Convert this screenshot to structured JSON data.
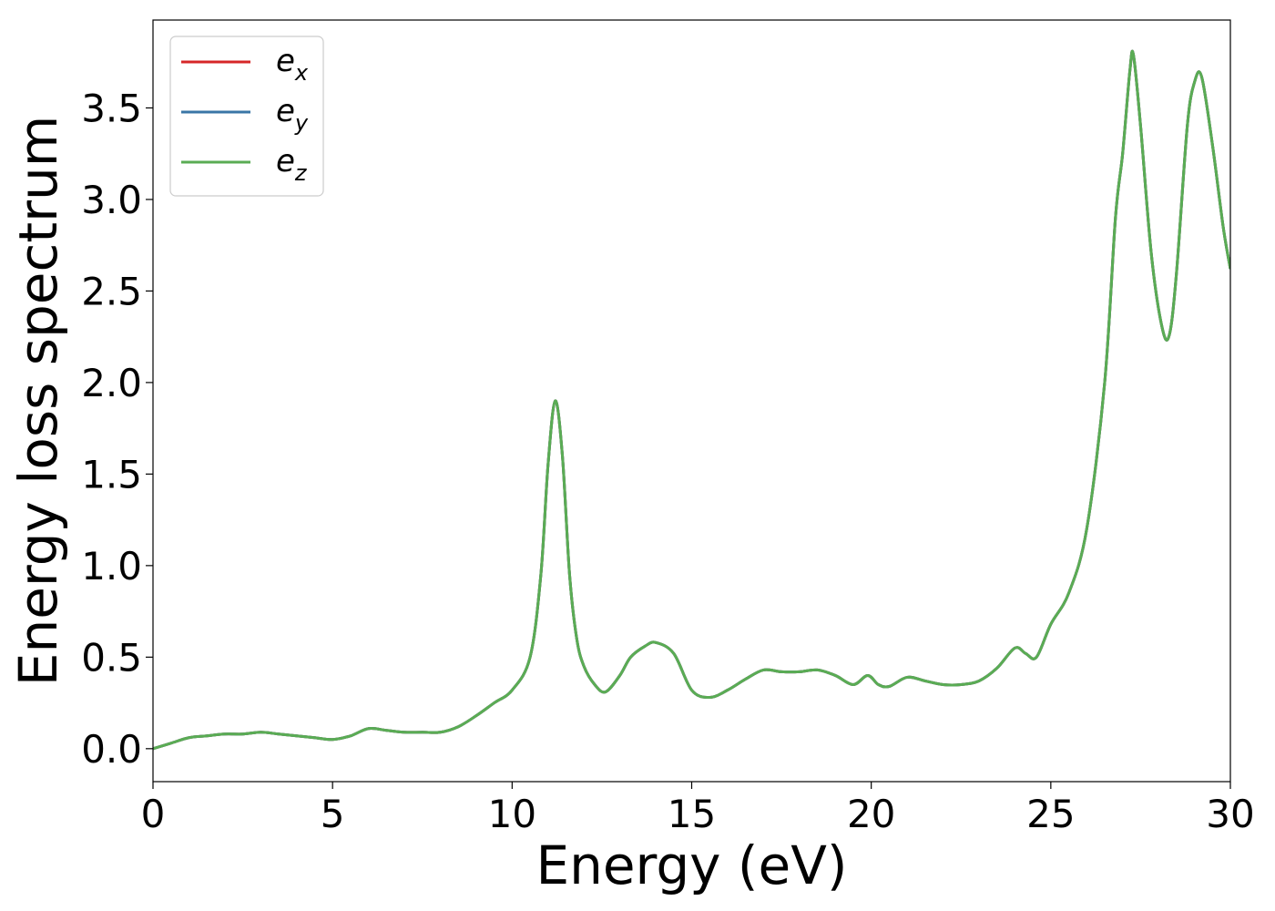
{
  "chart_data": {
    "type": "line",
    "title": "",
    "xlabel": "Energy (eV)",
    "ylabel": "Energy loss spectrum",
    "xlim": [
      0,
      30
    ],
    "ylim": [
      -0.18,
      3.98
    ],
    "xticks": [
      0,
      5,
      10,
      15,
      20,
      25,
      30
    ],
    "xtick_labels": [
      "0",
      "5",
      "10",
      "15",
      "20",
      "25",
      "30"
    ],
    "yticks": [
      0.0,
      0.5,
      1.0,
      1.5,
      2.0,
      2.5,
      3.0,
      3.5
    ],
    "ytick_labels": [
      "0.0",
      "0.5",
      "1.0",
      "1.5",
      "2.0",
      "2.5",
      "3.0",
      "3.5"
    ],
    "grid": false,
    "legend_position": "top-left",
    "x": [
      0,
      0.5,
      1,
      1.5,
      2,
      2.5,
      3,
      3.5,
      4,
      4.5,
      5,
      5.5,
      6,
      6.5,
      7,
      7.5,
      8,
      8.5,
      9,
      9.5,
      10,
      10.5,
      10.8,
      11,
      11.2,
      11.4,
      11.6,
      11.8,
      12,
      12.3,
      12.6,
      13,
      13.3,
      13.7,
      14,
      14.5,
      15,
      15.5,
      16,
      16.5,
      17,
      17.5,
      18,
      18.5,
      19,
      19.5,
      19.9,
      20.2,
      20.5,
      21,
      21.5,
      22,
      22.5,
      23,
      23.5,
      24,
      24.3,
      24.6,
      25,
      25.5,
      26,
      26.5,
      26.8,
      27,
      27.2,
      27.3,
      27.5,
      27.8,
      28.1,
      28.3,
      28.5,
      28.8,
      29.0,
      29.2,
      29.5,
      29.8,
      30
    ],
    "series": [
      {
        "name": "e_x",
        "label_base": "e",
        "label_sub": "x",
        "color": "#d62728",
        "values": [
          0.0,
          0.03,
          0.06,
          0.07,
          0.08,
          0.08,
          0.09,
          0.08,
          0.07,
          0.06,
          0.05,
          0.07,
          0.11,
          0.1,
          0.09,
          0.09,
          0.09,
          0.12,
          0.18,
          0.25,
          0.32,
          0.5,
          0.95,
          1.55,
          1.9,
          1.6,
          0.95,
          0.6,
          0.45,
          0.35,
          0.31,
          0.4,
          0.5,
          0.56,
          0.58,
          0.52,
          0.32,
          0.28,
          0.32,
          0.38,
          0.43,
          0.42,
          0.42,
          0.43,
          0.4,
          0.35,
          0.4,
          0.35,
          0.34,
          0.39,
          0.37,
          0.35,
          0.35,
          0.37,
          0.44,
          0.55,
          0.52,
          0.5,
          0.68,
          0.85,
          1.2,
          2.0,
          2.9,
          3.25,
          3.7,
          3.79,
          3.4,
          2.7,
          2.3,
          2.26,
          2.6,
          3.4,
          3.64,
          3.67,
          3.3,
          2.85,
          2.62
        ]
      },
      {
        "name": "e_y",
        "label_base": "e",
        "label_sub": "y",
        "color": "#3a76a6",
        "values": [
          0.0,
          0.03,
          0.06,
          0.07,
          0.08,
          0.08,
          0.09,
          0.08,
          0.07,
          0.06,
          0.05,
          0.07,
          0.11,
          0.1,
          0.09,
          0.09,
          0.09,
          0.12,
          0.18,
          0.25,
          0.32,
          0.5,
          0.95,
          1.55,
          1.9,
          1.6,
          0.95,
          0.6,
          0.45,
          0.35,
          0.31,
          0.4,
          0.5,
          0.56,
          0.58,
          0.52,
          0.32,
          0.28,
          0.32,
          0.38,
          0.43,
          0.42,
          0.42,
          0.43,
          0.4,
          0.35,
          0.4,
          0.35,
          0.34,
          0.39,
          0.37,
          0.35,
          0.35,
          0.37,
          0.44,
          0.55,
          0.52,
          0.5,
          0.68,
          0.85,
          1.2,
          2.0,
          2.9,
          3.25,
          3.7,
          3.79,
          3.4,
          2.7,
          2.3,
          2.26,
          2.6,
          3.4,
          3.64,
          3.67,
          3.3,
          2.85,
          2.62
        ]
      },
      {
        "name": "e_z",
        "label_base": "e",
        "label_sub": "z",
        "color": "#5aac54",
        "values": [
          0.0,
          0.03,
          0.06,
          0.07,
          0.08,
          0.08,
          0.09,
          0.08,
          0.07,
          0.06,
          0.05,
          0.07,
          0.11,
          0.1,
          0.09,
          0.09,
          0.09,
          0.12,
          0.18,
          0.25,
          0.32,
          0.5,
          0.95,
          1.55,
          1.9,
          1.6,
          0.95,
          0.6,
          0.45,
          0.35,
          0.31,
          0.4,
          0.5,
          0.56,
          0.58,
          0.52,
          0.32,
          0.28,
          0.32,
          0.38,
          0.43,
          0.42,
          0.42,
          0.43,
          0.4,
          0.35,
          0.4,
          0.35,
          0.34,
          0.39,
          0.37,
          0.35,
          0.35,
          0.37,
          0.44,
          0.55,
          0.52,
          0.5,
          0.68,
          0.85,
          1.2,
          2.0,
          2.9,
          3.25,
          3.7,
          3.79,
          3.4,
          2.7,
          2.3,
          2.26,
          2.6,
          3.4,
          3.64,
          3.67,
          3.3,
          2.85,
          2.62
        ]
      }
    ]
  }
}
